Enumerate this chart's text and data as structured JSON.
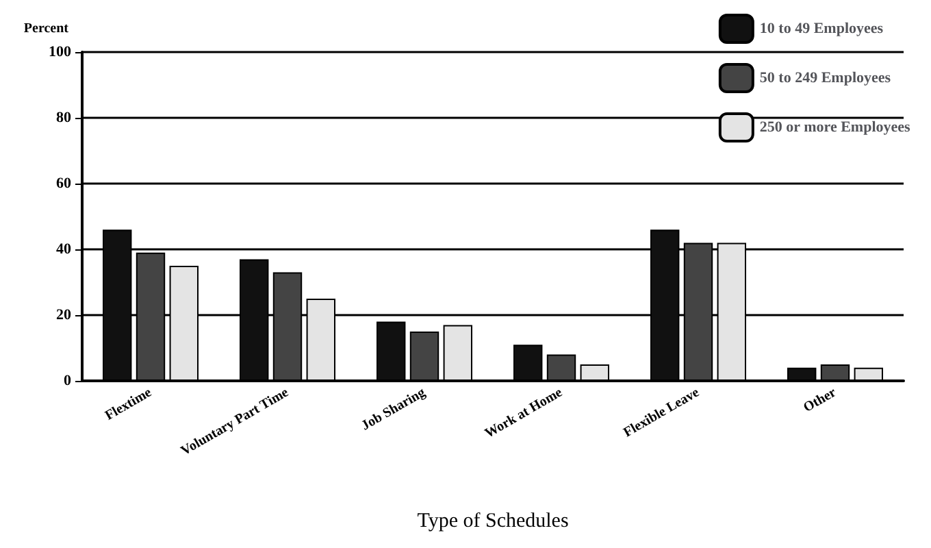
{
  "chart_data": {
    "type": "bar",
    "xlabel": "Type of Schedules",
    "ylabel": "Percent",
    "categories": [
      "Flextime",
      "Voluntary Part Time",
      "Job Sharing",
      "Work at Home",
      "Flexible Leave",
      "Other"
    ],
    "series": [
      {
        "name": "10 to 49 Employees",
        "color": "#111111",
        "values": [
          46,
          37,
          18,
          11,
          46,
          4
        ]
      },
      {
        "name": "50 to 249 Employees",
        "color": "#444444",
        "values": [
          39,
          33,
          15,
          8,
          42,
          5
        ]
      },
      {
        "name": "250 or more Employees",
        "color": "#e4e4e4",
        "values": [
          35,
          25,
          17,
          5,
          42,
          4
        ]
      }
    ],
    "ylim": [
      0,
      100
    ],
    "yticks": [
      0,
      20,
      40,
      60,
      80,
      100
    ],
    "grid": "y",
    "legend": "top right"
  }
}
